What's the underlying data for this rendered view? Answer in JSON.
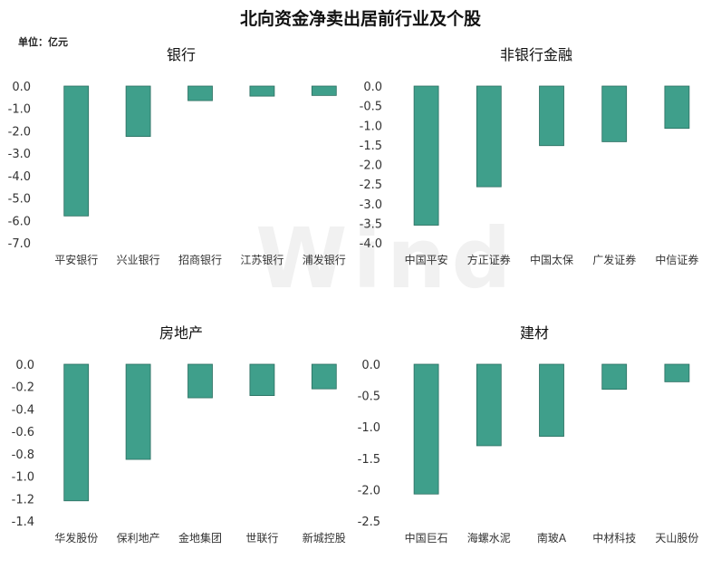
{
  "title": "北向资金净卖出居前行业及个股",
  "unit": "单位：亿元",
  "watermark": "Wind",
  "chart_data": [
    {
      "type": "bar",
      "title": "银行",
      "categories": [
        "平安银行",
        "兴业银行",
        "招商银行",
        "江苏银行",
        "浦发银行"
      ],
      "values": [
        -5.8,
        -2.25,
        -0.65,
        -0.45,
        -0.42
      ],
      "ylim": [
        -7.0,
        0.0
      ],
      "yticks": [
        "0.0",
        "-1.0",
        "-2.0",
        "-3.0",
        "-4.0",
        "-5.0",
        "-6.0",
        "-7.0"
      ],
      "grid": false,
      "legend": "none",
      "color": "#3f9f8b"
    },
    {
      "type": "bar",
      "title": "非银行金融",
      "categories": [
        "中国平安",
        "方正证券",
        "中国太保",
        "广发证券",
        "中信证券"
      ],
      "values": [
        -3.55,
        -2.57,
        -1.52,
        -1.42,
        -1.08
      ],
      "ylim": [
        -4.0,
        0.0
      ],
      "yticks": [
        "0.0",
        "-0.5",
        "-1.0",
        "-1.5",
        "-2.0",
        "-2.5",
        "-3.0",
        "-3.5",
        "-4.0"
      ],
      "grid": false,
      "legend": "none",
      "color": "#3f9f8b"
    },
    {
      "type": "bar",
      "title": "房地产",
      "categories": [
        "华发股份",
        "保利地产",
        "金地集团",
        "世联行",
        "新城控股"
      ],
      "values": [
        -1.22,
        -0.85,
        -0.3,
        -0.28,
        -0.22
      ],
      "ylim": [
        -1.4,
        0.0
      ],
      "yticks": [
        "0.0",
        "-0.2",
        "-0.4",
        "-0.6",
        "-0.8",
        "-1.0",
        "-1.2",
        "-1.4"
      ],
      "grid": false,
      "legend": "none",
      "color": "#3f9f8b"
    },
    {
      "type": "bar",
      "title": "建材",
      "categories": [
        "中国巨石",
        "海螺水泥",
        "南玻A",
        "中材科技",
        "天山股份"
      ],
      "values": [
        -2.07,
        -1.3,
        -1.15,
        -0.4,
        -0.28
      ],
      "ylim": [
        -2.5,
        0.0
      ],
      "yticks": [
        "0.0",
        "-0.5",
        "-1.0",
        "-1.5",
        "-2.0",
        "-2.5"
      ],
      "grid": false,
      "legend": "none",
      "color": "#3f9f8b"
    }
  ]
}
